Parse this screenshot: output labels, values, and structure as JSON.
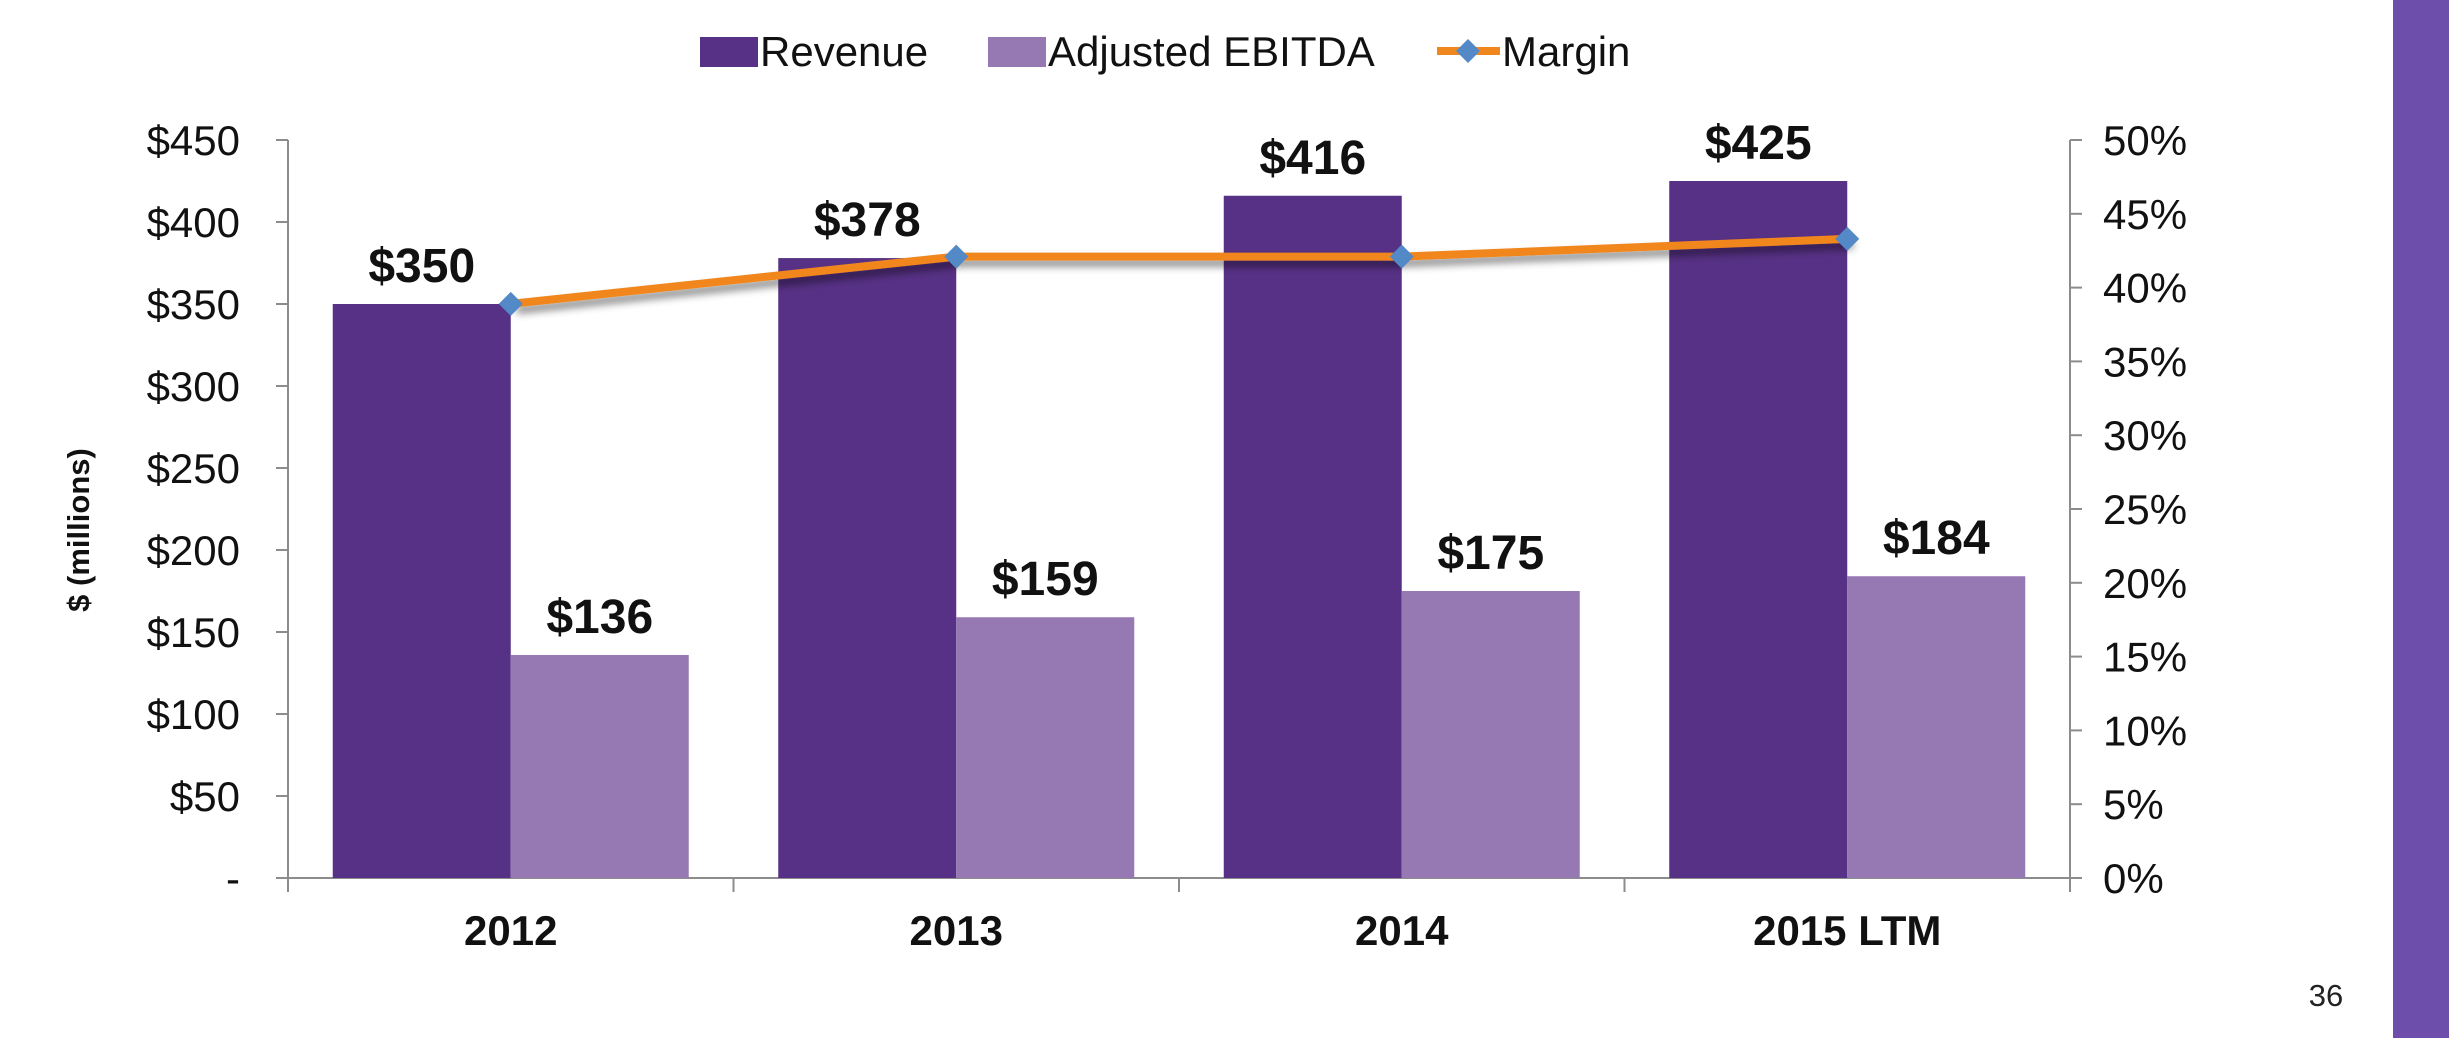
{
  "colors": {
    "revenue": "#573185",
    "ebitda": "#9678b3",
    "margin_line": "#f0861e",
    "margin_marker": "#5289c6",
    "side_bar": "#6d4fab",
    "axis": "#8c8c8c"
  },
  "page_number": "36",
  "chart_data": {
    "type": "bar",
    "categories": [
      "2012",
      "2013",
      "2014",
      "2015 LTM"
    ],
    "series": [
      {
        "name": "Revenue",
        "type": "bar",
        "axis": "left",
        "values": [
          350,
          378,
          416,
          425
        ],
        "labels": [
          "$350",
          "$378",
          "$416",
          "$425"
        ]
      },
      {
        "name": "Adjusted EBITDA",
        "type": "bar",
        "axis": "left",
        "values": [
          136,
          159,
          175,
          184
        ],
        "labels": [
          "$136",
          "$159",
          "$175",
          "$184"
        ]
      },
      {
        "name": "Margin",
        "type": "line",
        "axis": "right",
        "values": [
          0.389,
          0.421,
          0.421,
          0.433
        ]
      }
    ],
    "ylabel": "$ (millions)",
    "ylim": [
      0,
      450
    ],
    "y_ticks": [
      "-",
      "$50",
      "$100",
      "$150",
      "$200",
      "$250",
      "$300",
      "$350",
      "$400",
      "$450"
    ],
    "y2lim": [
      0,
      0.5
    ],
    "y2_ticks": [
      "0%",
      "5%",
      "10%",
      "15%",
      "20%",
      "25%",
      "30%",
      "35%",
      "40%",
      "45%",
      "50%"
    ],
    "legend_position": "top",
    "grid": false
  }
}
